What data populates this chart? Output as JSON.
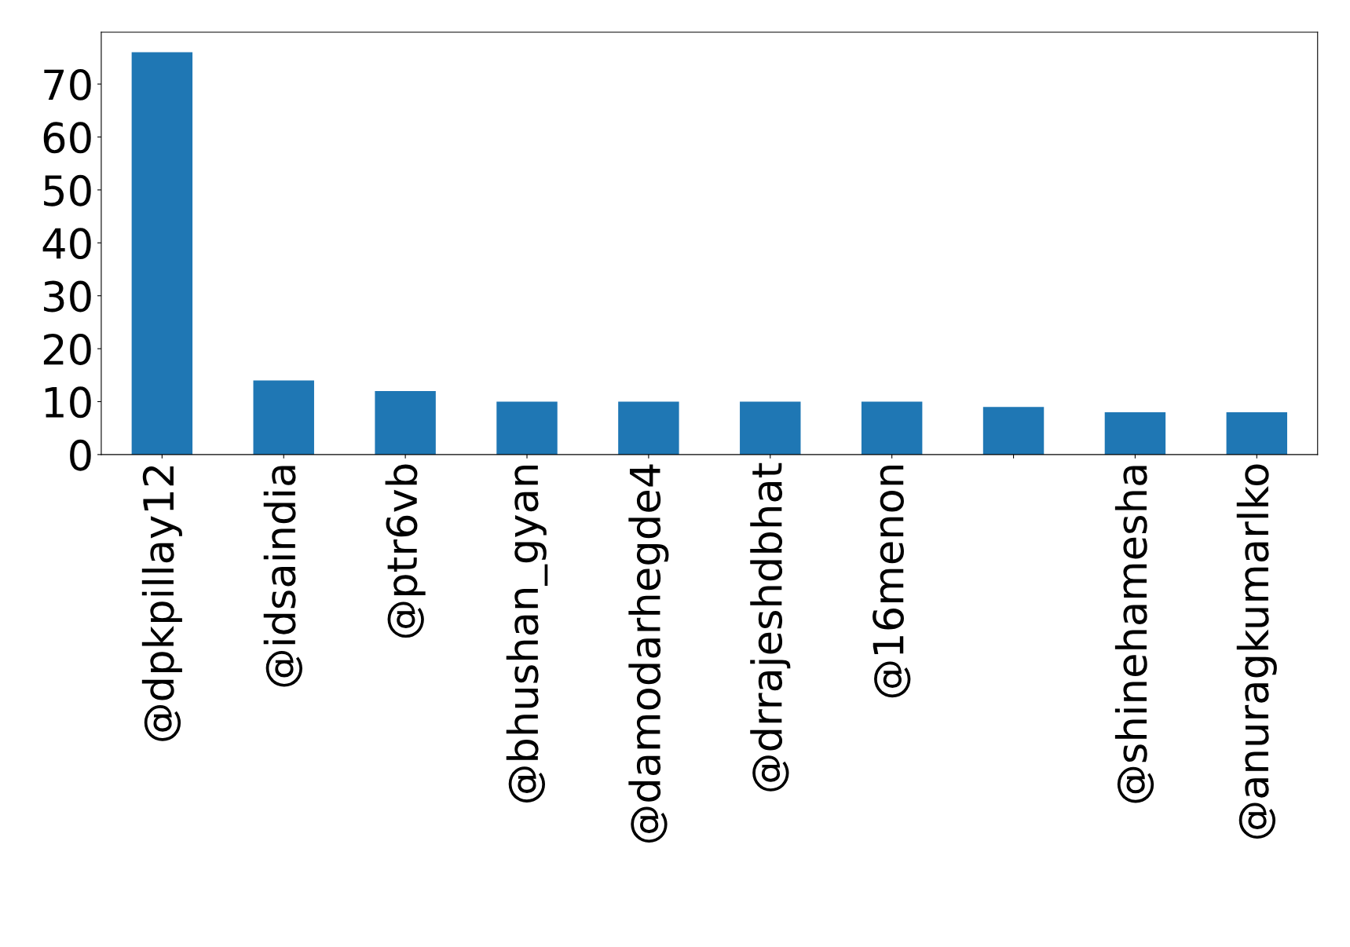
{
  "chart_data": {
    "type": "bar",
    "categories": [
      "@dpkpillay12",
      "@idsaindia",
      "@ptr6vb",
      "@bhushan_gyan",
      "@damodarhegde4",
      "@drrajeshdbhat",
      "@16menon",
      null,
      "@shinehamesha",
      "@anuragkumarlko"
    ],
    "values": [
      76,
      14,
      12,
      10,
      10,
      10,
      10,
      9,
      8,
      8
    ],
    "color": "#1f77b4",
    "ylim": [
      0,
      79.8
    ],
    "yticks": [
      0,
      10,
      20,
      30,
      40,
      50,
      60,
      70
    ],
    "grid": false,
    "legend": false
  }
}
